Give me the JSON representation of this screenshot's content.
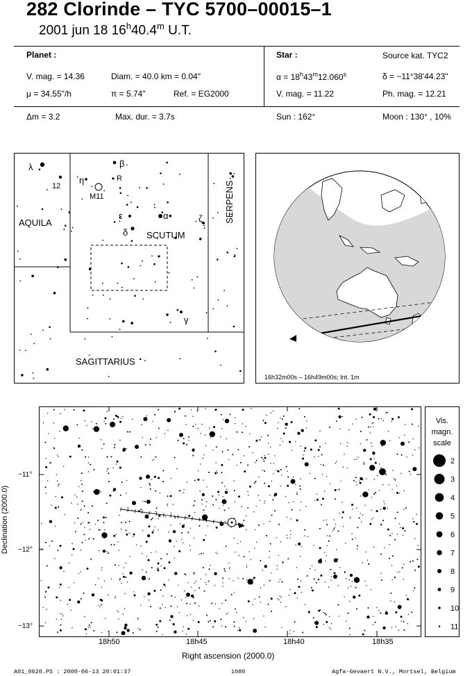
{
  "title": "282 Clorinde  –  TYC 5700–00015–1",
  "date_text": "2001 jun 18  16",
  "date_h": "h",
  "date_min": "40.4",
  "date_m": "m",
  "date_ut": " U.T.",
  "planet": {
    "header": "Planet :",
    "vmag": "V. mag. = 14.36",
    "diam": "Diam. = 40.0 km = 0.04\"",
    "mu": "μ =  34.55\"/h",
    "pi": "π =  5.74\"",
    "ref": "Ref. = EG2000"
  },
  "star": {
    "header": "Star :",
    "source": "Source kat.  TYC2",
    "alpha_pre": "α = 18",
    "alpha_h": "h",
    "alpha_mid": "43",
    "alpha_m": "m",
    "alpha_sec": "12.060",
    "alpha_s": "s",
    "delta": "δ = −11°38'44.23\"",
    "vmag": "V. mag. = 11.22",
    "phmag": "Ph. mag. = 12.21"
  },
  "bottom_row": {
    "dm": "Δm = 3.2",
    "maxdur": "Max. dur. = 3.7s",
    "sun": "Sun : 162°",
    "moon": "Moon : 130° , 10%"
  },
  "constellations": {
    "aquila": "AQUILA",
    "scutum": "SCUTUM",
    "serpens": "SERPENS",
    "sagittarius": "SAGITTARIUS",
    "lambda": "λ",
    "n12": "12",
    "eta": "η",
    "m11": "M11",
    "beta": "β",
    "r": "R",
    "epsilon": "ε",
    "alpha": "α",
    "delta": "δ",
    "zeta": "ζ",
    "gamma": "γ"
  },
  "globe_caption": "16h32m00s – 16h49m00s; Int.  1m",
  "chart": {
    "xlabel": "Right ascension (2000.0)",
    "ylabel": "Declination (2000.0)",
    "xticks": [
      "18h50",
      "18h45",
      "18h40",
      "18h35"
    ],
    "yticks": [
      "−11°",
      "−12°",
      "−13°"
    ]
  },
  "magscale": {
    "title1": "Vis.",
    "title2": "magn.",
    "title3": "scale",
    "items": [
      "2",
      "3",
      "4",
      "5",
      "6",
      "7",
      "8",
      "9",
      "10",
      "11"
    ]
  },
  "footer": {
    "left": "A01_0620.PS : 2000-06-13 20:01:37",
    "center": "1080",
    "right": "Agfa-Gevaert N.V., Mortsel, Belgium"
  }
}
